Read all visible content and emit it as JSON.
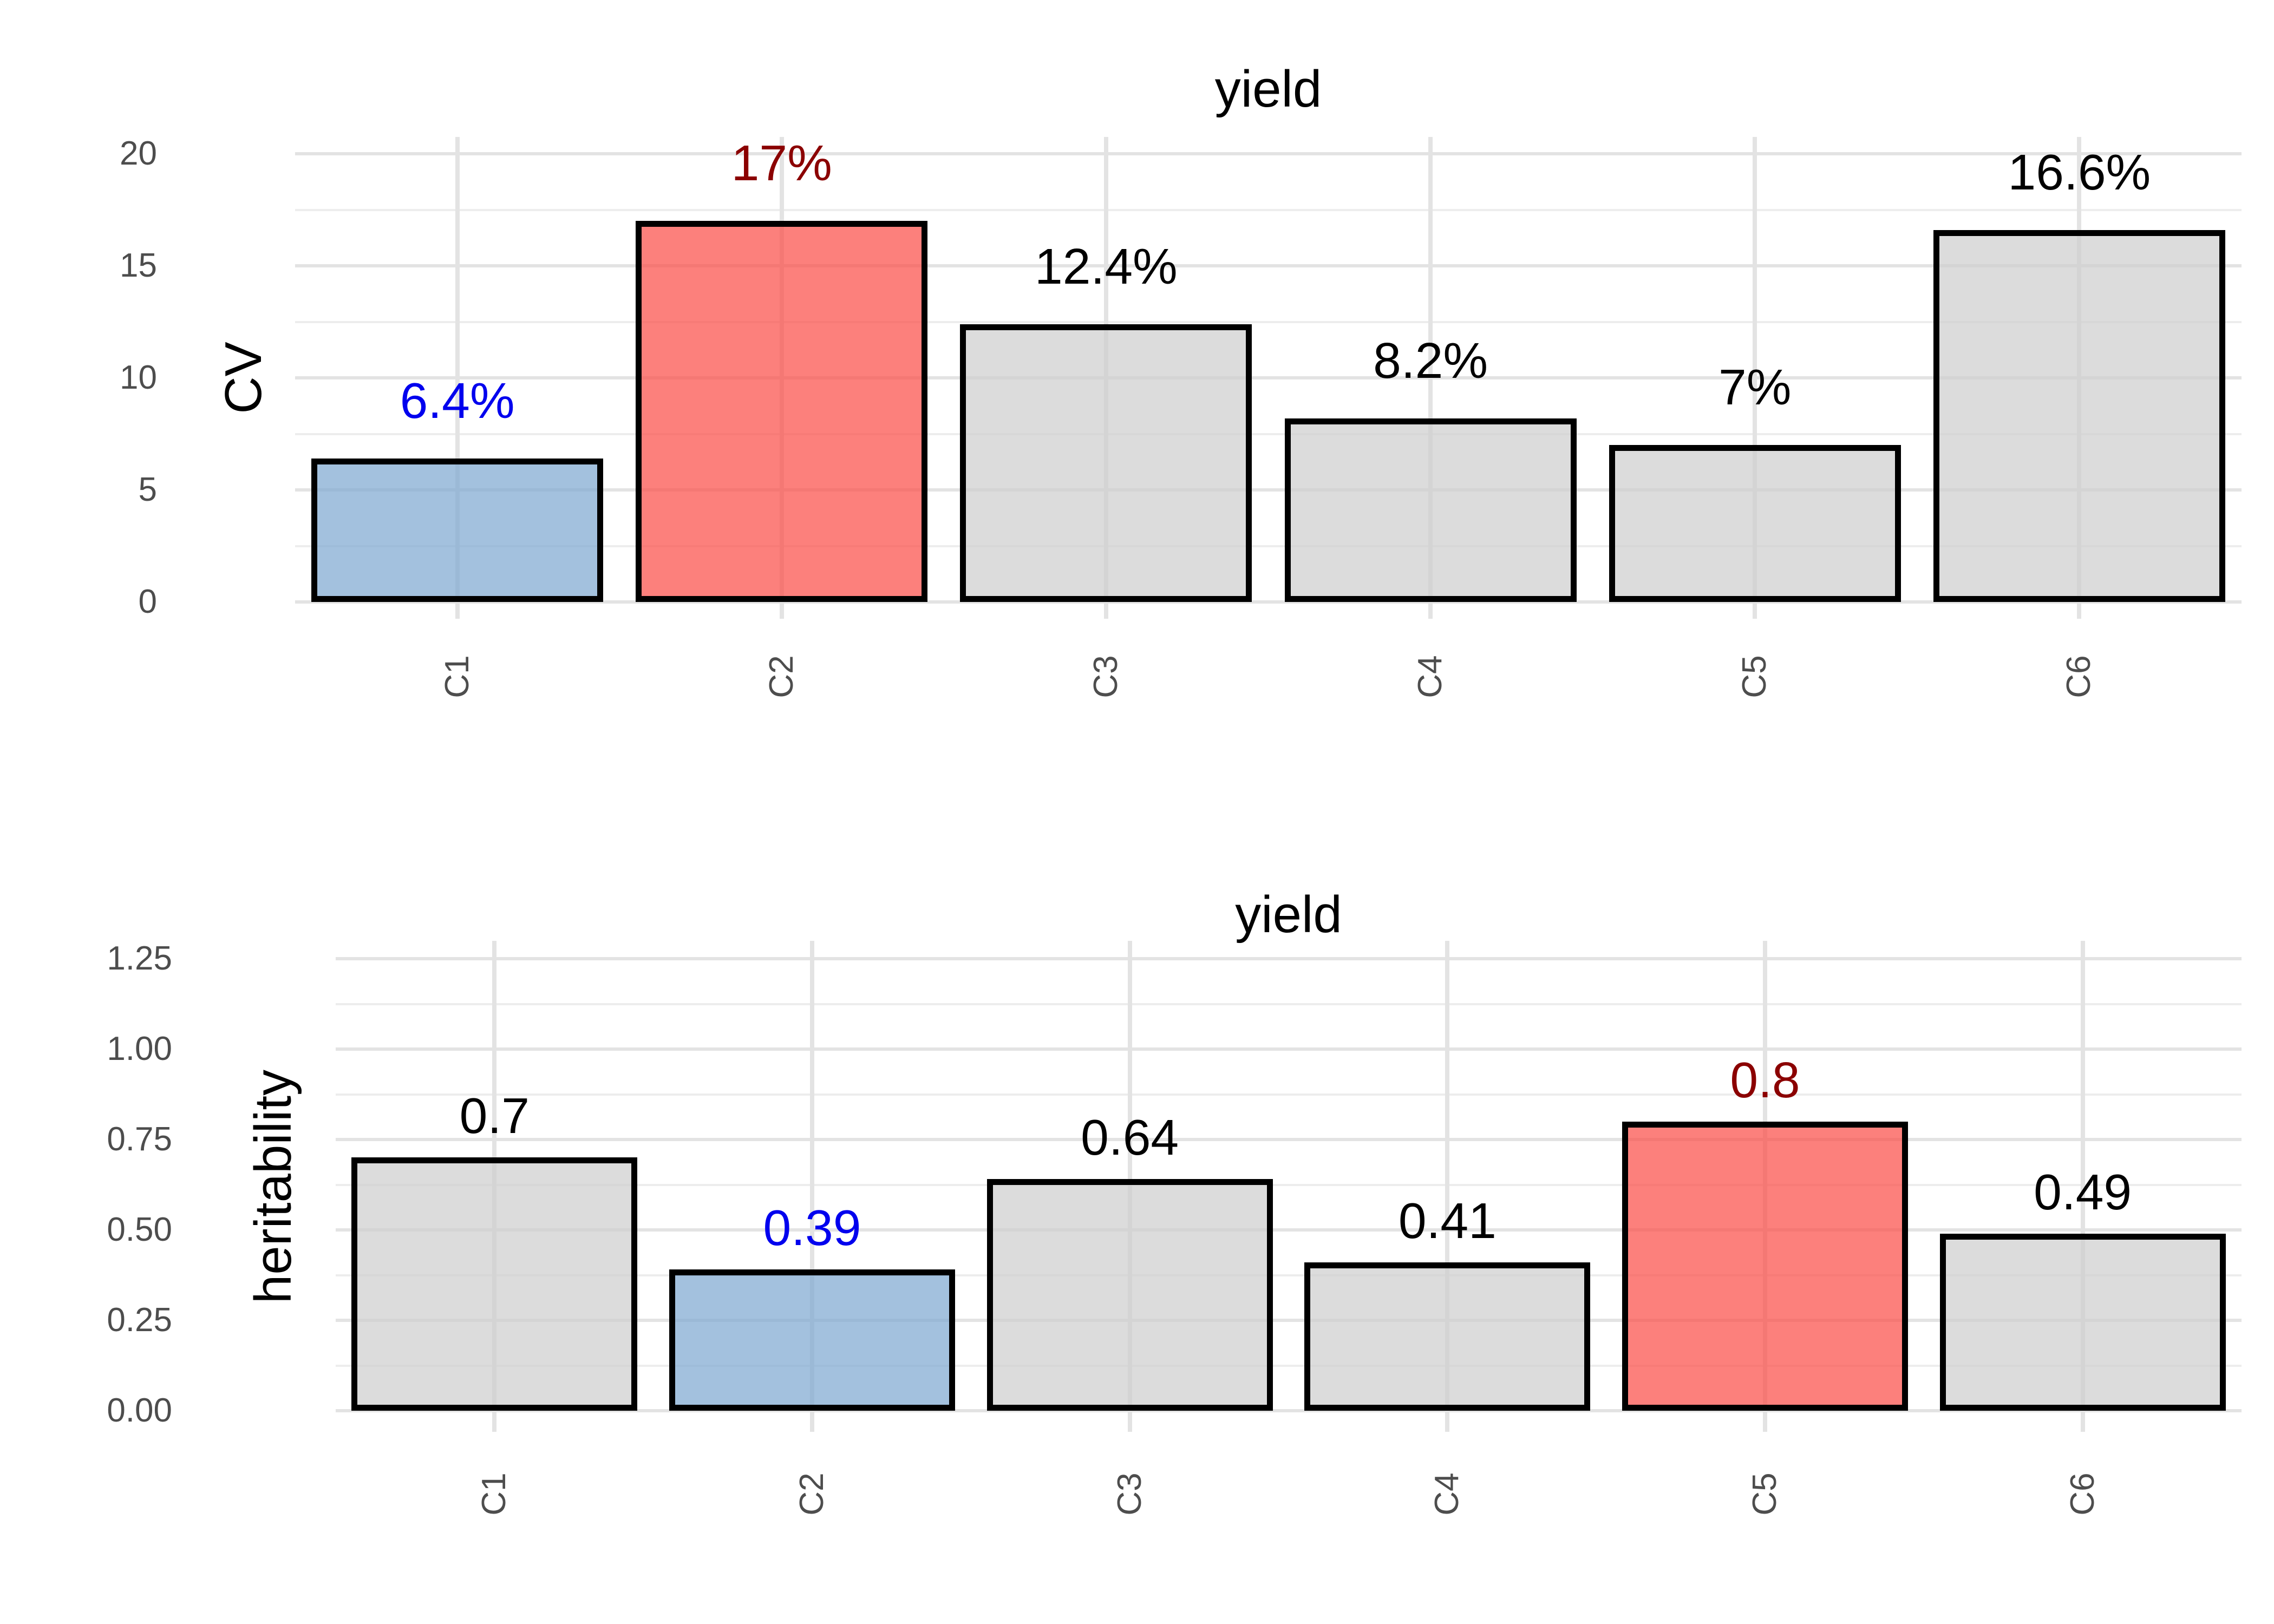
{
  "colors": {
    "background": "#FFFFFF",
    "grid_major": "#E3E3E3",
    "grid_minor": "#EDEDED",
    "bar_border": "#000000",
    "bar_gray_fill": "rgba(206,206,206,0.72)",
    "bar_blue_fill": "rgba(127,169,209,0.72)",
    "bar_red_fill": "rgba(251,79,73,0.72)",
    "label_black": "#000000",
    "label_blue": "#0000EE",
    "label_red": "#8B0000",
    "tick_text": "#4D4D4D",
    "title_text": "#000000"
  },
  "chart_data": [
    {
      "type": "bar",
      "title": "yield",
      "xlabel": "",
      "ylabel": "CV",
      "categories": [
        "C1",
        "C2",
        "C3",
        "C4",
        "C5",
        "C6"
      ],
      "values": [
        6.4,
        17,
        12.4,
        8.2,
        7,
        16.6
      ],
      "bar_labels": [
        "6.4%",
        "17%",
        "12.4%",
        "8.2%",
        "7%",
        "16.6%"
      ],
      "bar_styles": [
        "blue",
        "red",
        "gray",
        "gray",
        "gray",
        "gray"
      ],
      "label_styles": [
        "blue",
        "red",
        "black",
        "black",
        "black",
        "black"
      ],
      "y_tick_labels": [
        "0",
        "5",
        "10",
        "15",
        "20"
      ],
      "y_tick_values": [
        0,
        5,
        10,
        15,
        20
      ],
      "y_minor_values": [
        2.5,
        7.5,
        12.5,
        17.5
      ],
      "ylim": [
        0,
        21.5
      ],
      "grid": "major-and-minor-horizontal, major-vertical-at-categories",
      "legend": "none",
      "bar_outline": "black"
    },
    {
      "type": "bar",
      "title": "yield",
      "xlabel": "",
      "ylabel": "heritability",
      "categories": [
        "C1",
        "C2",
        "C3",
        "C4",
        "C5",
        "C6"
      ],
      "values": [
        0.7,
        0.39,
        0.64,
        0.41,
        0.8,
        0.49
      ],
      "bar_labels": [
        "0.7",
        "0.39",
        "0.64",
        "0.41",
        "0.8",
        "0.49"
      ],
      "bar_styles": [
        "gray",
        "blue",
        "gray",
        "gray",
        "red",
        "gray"
      ],
      "label_styles": [
        "black",
        "blue",
        "black",
        "black",
        "red",
        "black"
      ],
      "y_tick_labels": [
        "0.00",
        "0.25",
        "0.50",
        "0.75",
        "1.00",
        "1.25"
      ],
      "y_tick_values": [
        0,
        0.25,
        0.5,
        0.75,
        1,
        1.25
      ],
      "y_minor_values": [
        0.125,
        0.375,
        0.625,
        0.875,
        1.125
      ],
      "ylim": [
        0,
        1.31
      ],
      "grid": "major-and-minor-horizontal, major-vertical-at-categories",
      "legend": "none",
      "bar_outline": "black"
    }
  ]
}
